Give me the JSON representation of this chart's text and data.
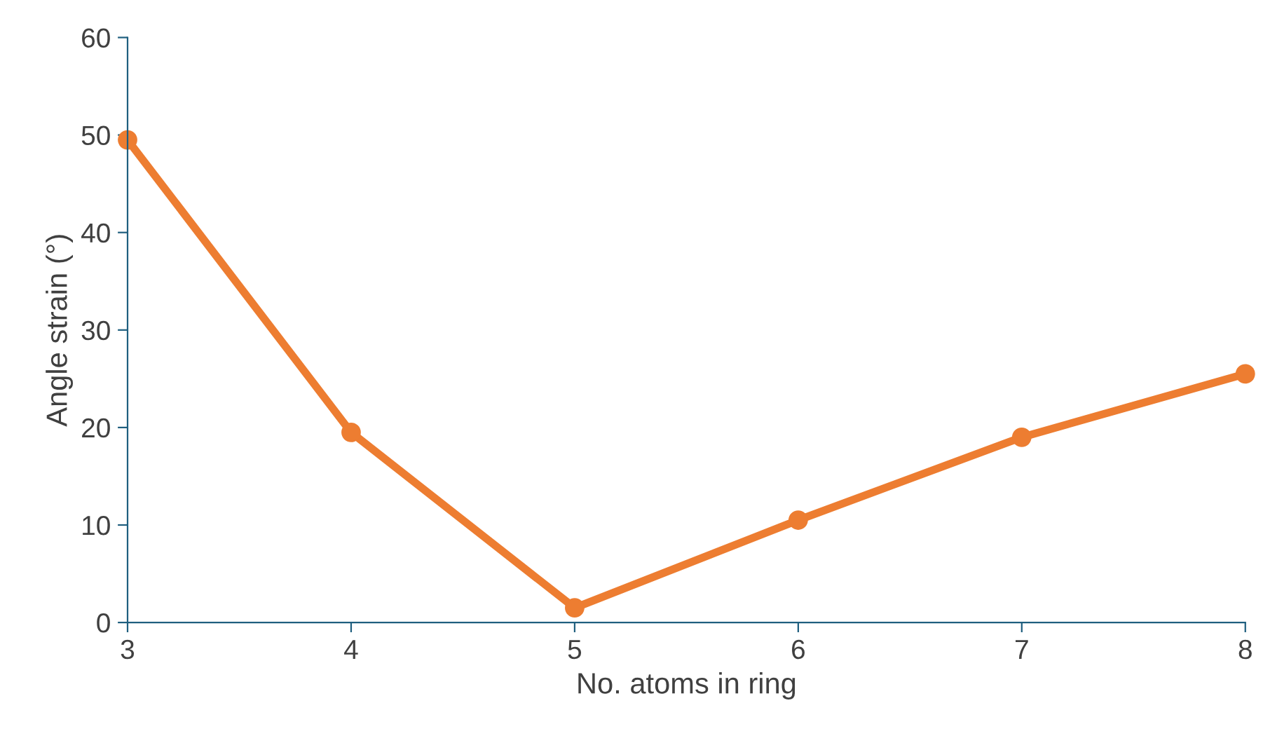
{
  "chart_data": {
    "type": "line",
    "xlabel": "No. atoms in ring",
    "ylabel": "Angle strain (°)",
    "x": [
      3,
      4,
      5,
      6,
      7,
      8
    ],
    "series": [
      {
        "color": "#ed7d31",
        "values": [
          49.5,
          19.5,
          1.5,
          10.5,
          19,
          25.5
        ]
      }
    ],
    "xlim": [
      3,
      8
    ],
    "xticks": [
      3,
      4,
      5,
      6,
      7,
      8
    ],
    "ylim": [
      0,
      60
    ],
    "yticks": [
      0,
      10,
      20,
      30,
      40,
      50,
      60
    ],
    "grid": false,
    "legend": false,
    "marker": "circle",
    "line_style": "solid"
  }
}
